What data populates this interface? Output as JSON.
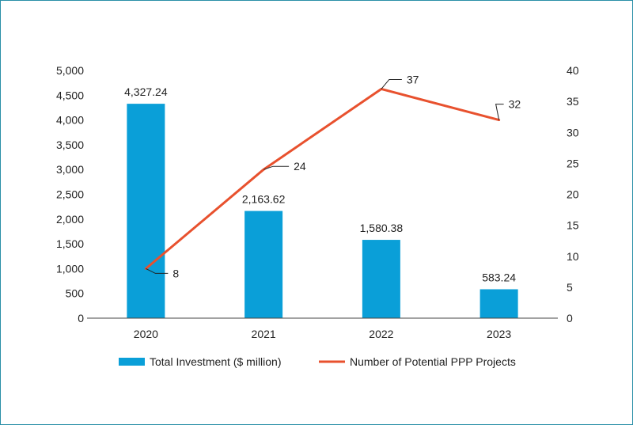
{
  "chart_data": {
    "type": "bar",
    "categories": [
      "2020",
      "2021",
      "2022",
      "2023"
    ],
    "series": [
      {
        "name": "Total Investment ($ million)",
        "type": "bar",
        "axis": "left",
        "values": [
          4327.24,
          2163.62,
          1580.38,
          583.24
        ],
        "labels": [
          "4,327.24",
          "2,163.62",
          "1,580.38",
          "583.24"
        ],
        "color": "#0a9fd8"
      },
      {
        "name": "Number of Potential PPP Projects",
        "type": "line",
        "axis": "right",
        "values": [
          8,
          24,
          37,
          32
        ],
        "labels": [
          "8",
          "24",
          "37",
          "32"
        ],
        "color": "#e8512e"
      }
    ],
    "y_left": {
      "range": [
        0,
        5000
      ],
      "ticks": [
        0,
        500,
        1000,
        1500,
        2000,
        2500,
        3000,
        3500,
        4000,
        4500,
        5000
      ],
      "tick_labels": [
        "0",
        "500",
        "1,000",
        "1,500",
        "2,000",
        "2,500",
        "3,000",
        "3,500",
        "4,000",
        "4,500",
        "5,000"
      ]
    },
    "y_right": {
      "range": [
        0,
        40
      ],
      "ticks": [
        0,
        5,
        10,
        15,
        20,
        25,
        30,
        35,
        40
      ],
      "tick_labels": [
        "0",
        "5",
        "10",
        "15",
        "20",
        "25",
        "30",
        "35",
        "40"
      ]
    },
    "grid": false,
    "legend_position": "bottom"
  }
}
